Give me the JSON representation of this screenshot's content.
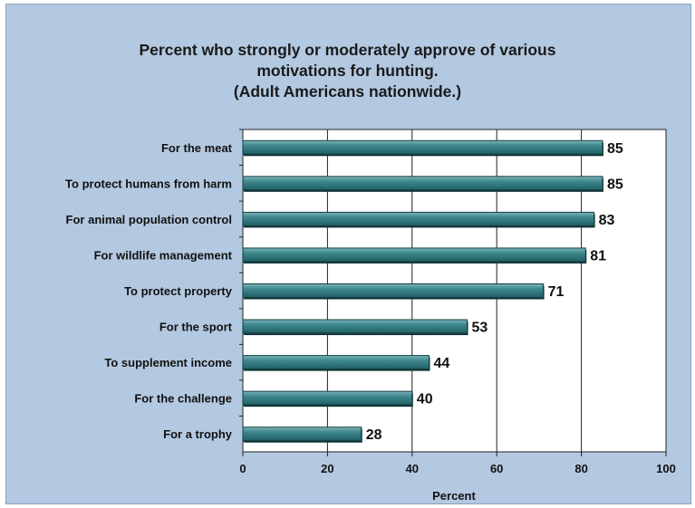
{
  "chart_data": {
    "type": "bar",
    "orientation": "horizontal",
    "title": [
      "Percent who strongly or moderately approve of various",
      "motivations for hunting.",
      "(Adult Americans nationwide.)"
    ],
    "categories": [
      "For the meat",
      "To protect humans from harm",
      "For animal population control",
      "For wildlife management",
      "To protect property",
      "For the sport",
      "To supplement income",
      "For the challenge",
      "For a trophy"
    ],
    "values": [
      85,
      85,
      83,
      81,
      71,
      53,
      44,
      40,
      28
    ],
    "xlabel": "Percent",
    "xlim": [
      0,
      100
    ],
    "xticks": [
      0,
      20,
      40,
      60,
      80,
      100
    ],
    "grid": "vertical",
    "bar_color": "#2e7479",
    "background_color": "#b3c9e1",
    "plot_background_color": "#ffffff"
  }
}
